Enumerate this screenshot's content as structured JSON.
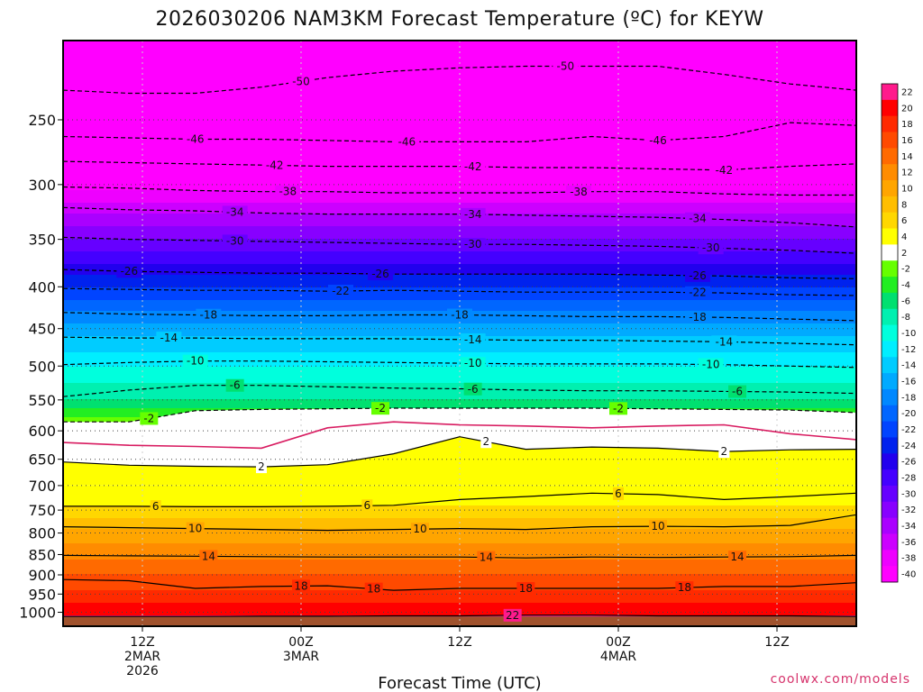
{
  "chart_data": {
    "type": "heatmap",
    "title": "2026030206 NAM3KM Forecast Temperature (ºC) for KEYW",
    "xlabel": "Forecast Time (UTC)",
    "ylabel": "",
    "credit": "coolwx.com/models",
    "x_ticks": [
      {
        "hour": 6,
        "lines": [
          "12Z",
          "2MAR",
          "2026"
        ]
      },
      {
        "hour": 18,
        "lines": [
          "00Z",
          "3MAR"
        ]
      },
      {
        "hour": 30,
        "lines": [
          "12Z"
        ]
      },
      {
        "hour": 42,
        "lines": [
          "00Z",
          "4MAR"
        ]
      },
      {
        "hour": 54,
        "lines": [
          "12Z"
        ]
      }
    ],
    "xlim": [
      0,
      60
    ],
    "ylim": [
      1040,
      200
    ],
    "y_scale": "log",
    "y_ticks": [
      250,
      300,
      350,
      400,
      450,
      500,
      550,
      600,
      650,
      700,
      750,
      800,
      850,
      900,
      950,
      1000
    ],
    "colorbar": {
      "levels": [
        22,
        20,
        18,
        16,
        14,
        12,
        10,
        8,
        6,
        4,
        2,
        -2,
        -4,
        -6,
        -8,
        -10,
        -12,
        -14,
        -16,
        -18,
        -20,
        -22,
        -24,
        -26,
        -28,
        -30,
        -32,
        -34,
        -36,
        -38,
        -40
      ],
      "bins": [
        {
          "color": "#ff1a8c"
        },
        {
          "color": "#ff0000"
        },
        {
          "color": "#ff2a00"
        },
        {
          "color": "#ff4a00"
        },
        {
          "color": "#ff6a00"
        },
        {
          "color": "#ff8c00"
        },
        {
          "color": "#ffa500"
        },
        {
          "color": "#ffbe00"
        },
        {
          "color": "#ffd700"
        },
        {
          "color": "#ffff00"
        },
        {
          "color": "#ffffff"
        },
        {
          "color": "#66ff00"
        },
        {
          "color": "#22ee22"
        },
        {
          "color": "#00e070"
        },
        {
          "color": "#00f0b0"
        },
        {
          "color": "#00ffdd"
        },
        {
          "color": "#00eeff"
        },
        {
          "color": "#00ccff"
        },
        {
          "color": "#00aaff"
        },
        {
          "color": "#0088ff"
        },
        {
          "color": "#0066ff"
        },
        {
          "color": "#0044ff"
        },
        {
          "color": "#0022ee"
        },
        {
          "color": "#2200ee"
        },
        {
          "color": "#4400ff"
        },
        {
          "color": "#6600ff"
        },
        {
          "color": "#8800ff"
        },
        {
          "color": "#aa00ff"
        },
        {
          "color": "#cc00ff"
        },
        {
          "color": "#ee00ff"
        },
        {
          "color": "#ff00ff"
        }
      ]
    },
    "profile": [
      {
        "p": 1040,
        "t": 24
      },
      {
        "p": 1010,
        "t": 22
      },
      {
        "p": 960,
        "t": 19.2
      },
      {
        "p": 900,
        "t": 16
      },
      {
        "p": 860,
        "t": 14
      },
      {
        "p": 790,
        "t": 10
      },
      {
        "p": 745,
        "t": 6.3
      },
      {
        "p": 700,
        "t": 4
      },
      {
        "p": 660,
        "t": 2.3
      },
      {
        "p": 615,
        "t": 1
      },
      {
        "p": 580,
        "t": -1.8
      },
      {
        "p": 550,
        "t": -6
      },
      {
        "p": 500,
        "t": -10
      },
      {
        "p": 450,
        "t": -15
      },
      {
        "p": 400,
        "t": -22
      },
      {
        "p": 350,
        "t": -30
      },
      {
        "p": 325,
        "t": -34
      },
      {
        "p": 305,
        "t": -38
      },
      {
        "p": 285,
        "t": -42
      },
      {
        "p": 262,
        "t": -46
      },
      {
        "p": 232,
        "t": -50
      },
      {
        "p": 200,
        "t": -54
      }
    ],
    "contours": [
      {
        "level": -50,
        "style": "dashed",
        "p": [
          230,
          232,
          232,
          228,
          222,
          218,
          216,
          215,
          215,
          215,
          220,
          226,
          230
        ],
        "label_at": [
          [
            18,
            -50
          ],
          [
            38,
            -50
          ]
        ]
      },
      {
        "level": -46,
        "style": "dashed",
        "p": [
          262,
          263,
          264,
          264,
          265,
          266,
          266,
          266,
          262,
          265,
          262,
          252,
          254
        ],
        "label_at": [
          [
            10,
            -46
          ],
          [
            26,
            -46
          ],
          [
            45,
            -46
          ]
        ]
      },
      {
        "level": -42,
        "style": "dashed",
        "p": [
          281,
          282,
          283,
          284,
          285,
          285,
          285,
          286,
          286,
          287,
          288,
          285,
          283
        ],
        "label_at": [
          [
            16,
            -42
          ],
          [
            31,
            -42
          ],
          [
            50,
            -42
          ]
        ]
      },
      {
        "level": -38,
        "style": "dashed",
        "p": [
          302,
          303,
          305,
          306,
          306,
          307,
          307,
          307,
          306,
          306,
          308,
          309,
          309
        ],
        "label_at": [
          [
            17,
            -38
          ],
          [
            39,
            -38
          ]
        ]
      },
      {
        "level": -34,
        "style": "dashed",
        "p": [
          320,
          322,
          323,
          325,
          326,
          326,
          326,
          327,
          328,
          329,
          331,
          334,
          338
        ],
        "label_at": [
          [
            13,
            -34
          ],
          [
            31,
            -34
          ],
          [
            48,
            -34
          ]
        ]
      },
      {
        "level": -30,
        "style": "dashed",
        "p": [
          348,
          350,
          351,
          352,
          353,
          354,
          355,
          355,
          356,
          357,
          359,
          361,
          364
        ],
        "label_at": [
          [
            13,
            -30
          ],
          [
            31,
            -30
          ],
          [
            49,
            -30
          ]
        ]
      },
      {
        "level": -26,
        "style": "dashed",
        "p": [
          381,
          383,
          384,
          385,
          385,
          386,
          386,
          386,
          386,
          387,
          388,
          390,
          391
        ],
        "label_at": [
          [
            5,
            -26
          ],
          [
            24,
            -26
          ],
          [
            48,
            -26
          ]
        ]
      },
      {
        "level": -22,
        "style": "dashed",
        "p": [
          402,
          403,
          404,
          404,
          405,
          404,
          405,
          406,
          406,
          406,
          407,
          409,
          410
        ],
        "label_at": [
          [
            21,
            -22
          ],
          [
            48,
            -22
          ]
        ]
      },
      {
        "level": -18,
        "style": "dashed",
        "p": [
          430,
          432,
          433,
          434,
          434,
          433,
          433,
          434,
          435,
          435,
          436,
          438,
          440
        ],
        "label_at": [
          [
            11,
            -18
          ],
          [
            30,
            -18
          ],
          [
            48,
            -18
          ]
        ]
      },
      {
        "level": -14,
        "style": "dashed",
        "p": [
          461,
          462,
          462,
          463,
          463,
          463,
          464,
          465,
          465,
          466,
          467,
          469,
          471
        ],
        "label_at": [
          [
            8,
            -14
          ],
          [
            31,
            -14
          ],
          [
            50,
            -14
          ]
        ]
      },
      {
        "level": -10,
        "style": "dashed",
        "p": [
          498,
          495,
          493,
          493,
          494,
          495,
          496,
          497,
          497,
          497,
          498,
          500,
          502
        ],
        "label_at": [
          [
            10,
            -10
          ],
          [
            31,
            -10
          ],
          [
            49,
            -10
          ]
        ]
      },
      {
        "level": -6,
        "style": "dashed",
        "p": [
          545,
          535,
          528,
          528,
          530,
          532,
          533,
          535,
          536,
          536,
          537,
          538,
          540
        ],
        "label_at": [
          [
            13,
            -6
          ],
          [
            31,
            -6
          ],
          [
            51,
            -6
          ]
        ]
      },
      {
        "level": -2,
        "style": "dashed",
        "p": [
          585,
          585,
          567,
          565,
          564,
          563,
          563,
          563,
          563,
          564,
          565,
          566,
          570
        ],
        "label_at": [
          [
            6.5,
            -2
          ],
          [
            24,
            -2
          ],
          [
            42,
            -2
          ]
        ]
      },
      {
        "level": 2,
        "style": "solid",
        "p": [
          655,
          661,
          663,
          664,
          660,
          640,
          610,
          632,
          628,
          630,
          636,
          633,
          632
        ],
        "label_at": [
          [
            15,
            2
          ],
          [
            32,
            2
          ],
          [
            50,
            2
          ]
        ]
      },
      {
        "level": 6,
        "style": "solid",
        "p": [
          742,
          742,
          743,
          743,
          742,
          740,
          728,
          722,
          715,
          718,
          728,
          722,
          715
        ],
        "label_at": [
          [
            7,
            6
          ],
          [
            23,
            6
          ],
          [
            42,
            6
          ]
        ]
      },
      {
        "level": 10,
        "style": "solid",
        "p": [
          786,
          788,
          790,
          792,
          794,
          792,
          790,
          792,
          786,
          785,
          786,
          783,
          760
        ],
        "label_at": [
          [
            10,
            10
          ],
          [
            27,
            10
          ],
          [
            45,
            10
          ]
        ]
      },
      {
        "level": 14,
        "style": "solid",
        "p": [
          852,
          853,
          854,
          855,
          856,
          856,
          856,
          858,
          856,
          857,
          856,
          855,
          852
        ],
        "label_at": [
          [
            11,
            14
          ],
          [
            32,
            14
          ],
          [
            51,
            14
          ]
        ]
      },
      {
        "level": 18,
        "style": "solid",
        "p": [
          912,
          915,
          935,
          930,
          928,
          940,
          935,
          935,
          935,
          935,
          930,
          930,
          920
        ],
        "label_at": [
          [
            18,
            18
          ],
          [
            23.5,
            18
          ],
          [
            35,
            18
          ],
          [
            47,
            18
          ]
        ]
      },
      {
        "level": 22,
        "style": "solid",
        "p": [
          1012,
          1012,
          1012,
          1011,
          1011,
          1010,
          1010,
          1008,
          1008,
          1010,
          1010,
          1010,
          1012
        ],
        "label_at": [
          [
            34,
            22
          ]
        ]
      }
    ],
    "freezing_line": {
      "level": 0,
      "color": "#d81b60",
      "p": [
        620,
        625,
        627,
        630,
        595,
        585,
        590,
        592,
        595,
        592,
        590,
        605,
        615
      ]
    }
  }
}
